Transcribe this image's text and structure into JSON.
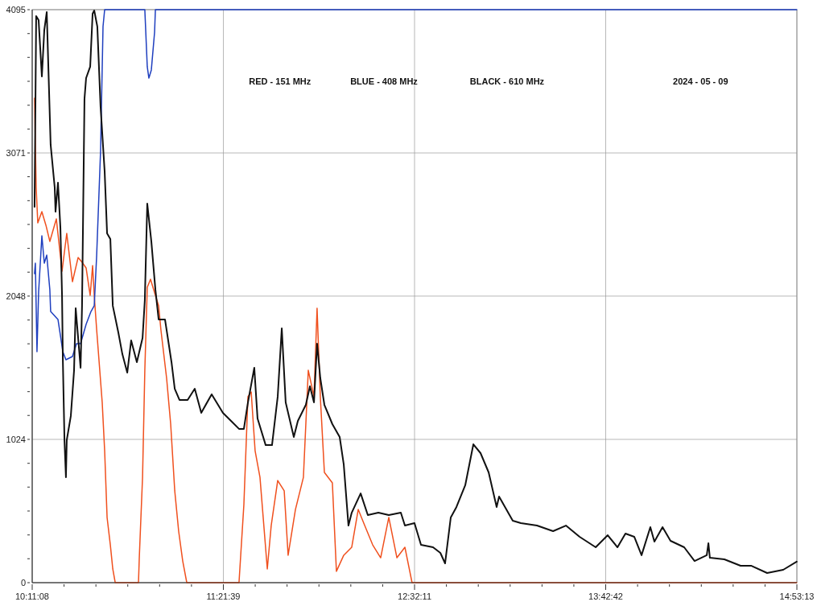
{
  "chart_data": {
    "type": "line",
    "annotations": [
      "RED - 151 MHz",
      "BLUE - 408 MHz",
      "BLACK - 610 MHz",
      "2024 - 05 - 09"
    ],
    "xlim": [
      10.18556,
      14.88694
    ],
    "xticks": [
      {
        "value": 10.18556,
        "label": "10:11:08"
      },
      {
        "value": 10.3814,
        "label": null
      },
      {
        "value": 10.5773,
        "label": null
      },
      {
        "value": 10.7732,
        "label": null
      },
      {
        "value": 10.969,
        "label": null
      },
      {
        "value": 11.1649,
        "label": null
      },
      {
        "value": 11.36083,
        "label": "11:21:39"
      },
      {
        "value": 11.5567,
        "label": null
      },
      {
        "value": 11.7526,
        "label": null
      },
      {
        "value": 11.9485,
        "label": null
      },
      {
        "value": 12.1445,
        "label": null
      },
      {
        "value": 12.3404,
        "label": null
      },
      {
        "value": 12.53639,
        "label": "12:32:11"
      },
      {
        "value": 12.7323,
        "label": null
      },
      {
        "value": 12.9282,
        "label": null
      },
      {
        "value": 13.1241,
        "label": null
      },
      {
        "value": 13.32,
        "label": null
      },
      {
        "value": 13.5158,
        "label": null
      },
      {
        "value": 13.71167,
        "label": "13:42:42"
      },
      {
        "value": 13.9076,
        "label": null
      },
      {
        "value": 14.1035,
        "label": null
      },
      {
        "value": 14.2994,
        "label": null
      },
      {
        "value": 14.4952,
        "label": null
      },
      {
        "value": 14.6911,
        "label": null
      },
      {
        "value": 14.88694,
        "label": "14:53:13"
      }
    ],
    "ylim": [
      0,
      4095
    ],
    "yticks": [
      0,
      {
        "value": 171,
        "label": null
      },
      {
        "value": 341,
        "label": null
      },
      {
        "value": 512,
        "label": null
      },
      {
        "value": 683,
        "label": null
      },
      {
        "value": 853,
        "label": null
      },
      1024,
      {
        "value": 1195,
        "label": null
      },
      {
        "value": 1365,
        "label": null
      },
      {
        "value": 1536,
        "label": null
      },
      {
        "value": 1707,
        "label": null
      },
      {
        "value": 1877,
        "label": null
      },
      2048,
      {
        "value": 2219,
        "label": null
      },
      {
        "value": 2389,
        "label": null
      },
      {
        "value": 2560,
        "label": null
      },
      {
        "value": 2730,
        "label": null
      },
      {
        "value": 2901,
        "label": null
      },
      3071,
      {
        "value": 3242,
        "label": null
      },
      {
        "value": 3412,
        "label": null
      },
      {
        "value": 3583,
        "label": null
      },
      {
        "value": 3754,
        "label": null
      },
      {
        "value": 3924,
        "label": null
      },
      4095
    ],
    "grid": true,
    "series": [
      {
        "color": "#f0501e",
        "x": [
          10.2,
          10.21,
          10.22,
          10.245,
          10.27,
          10.294,
          10.334,
          10.369,
          10.398,
          10.433,
          10.468,
          10.497,
          10.517,
          10.542,
          10.557,
          10.567,
          10.582,
          10.596,
          10.616,
          10.631,
          10.646,
          10.666,
          10.681,
          10.696,
          10.72,
          10.839,
          10.844,
          10.864,
          10.878,
          10.893,
          10.913,
          10.943,
          10.963,
          10.977,
          11.012,
          11.037,
          11.062,
          11.086,
          11.111,
          11.136,
          11.457,
          11.487,
          11.512,
          11.532,
          11.556,
          11.586,
          11.631,
          11.655,
          11.695,
          11.735,
          11.759,
          11.804,
          11.853,
          11.883,
          11.918,
          11.937,
          11.957,
          11.982,
          12.031,
          12.056,
          12.101,
          12.15,
          12.19,
          12.23,
          12.279,
          12.328,
          12.378,
          12.428,
          12.477,
          12.521,
          14.886
        ],
        "values": [
          3462,
          2824,
          2571,
          2651,
          2554,
          2439,
          2600,
          2226,
          2496,
          2151,
          2324,
          2283,
          2249,
          2053,
          2266,
          2053,
          1806,
          1593,
          1288,
          943,
          466,
          270,
          98,
          0,
          0,
          0,
          178,
          753,
          1518,
          2111,
          2168,
          2053,
          1978,
          1806,
          1461,
          1133,
          656,
          368,
          155,
          0,
          0,
          558,
          1329,
          1363,
          943,
          753,
          98,
          408,
          730,
          656,
          196,
          523,
          753,
          1518,
          1329,
          1961,
          1329,
          788,
          713,
          81,
          196,
          253,
          523,
          408,
          270,
          178,
          466,
          178,
          253,
          0,
          0
        ]
      },
      {
        "color": "#1f3fbf",
        "x": [
          10.2,
          10.205,
          10.215,
          10.225,
          10.245,
          10.26,
          10.275,
          10.294,
          10.299,
          10.344,
          10.374,
          10.393,
          10.433,
          10.458,
          10.483,
          10.517,
          10.547,
          10.567,
          10.582,
          10.606,
          10.621,
          10.631,
          10.878,
          10.893,
          10.903,
          10.918,
          10.938,
          10.943,
          14.886
        ],
        "values": [
          2209,
          2283,
          1651,
          2076,
          2479,
          2283,
          2341,
          2094,
          1938,
          1881,
          1651,
          1593,
          1616,
          1708,
          1708,
          1846,
          1938,
          1979,
          2341,
          3089,
          3974,
          4095,
          4095,
          3687,
          3606,
          3664,
          3934,
          4095,
          4095
        ]
      },
      {
        "color": "#111111",
        "x": [
          10.2,
          10.21,
          10.225,
          10.245,
          10.26,
          10.275,
          10.299,
          10.324,
          10.329,
          10.344,
          10.359,
          10.369,
          10.374,
          10.384,
          10.393,
          10.398,
          10.423,
          10.443,
          10.453,
          10.483,
          10.492,
          10.507,
          10.517,
          10.542,
          10.557,
          10.567,
          10.586,
          10.606,
          10.631,
          10.646,
          10.666,
          10.681,
          10.715,
          10.74,
          10.77,
          10.794,
          10.829,
          10.864,
          10.878,
          10.893,
          10.918,
          10.943,
          10.963,
          11.002,
          11.042,
          11.062,
          11.091,
          11.141,
          11.185,
          11.225,
          11.289,
          11.358,
          11.408,
          11.457,
          11.487,
          11.512,
          11.551,
          11.571,
          11.621,
          11.66,
          11.695,
          11.72,
          11.744,
          11.794,
          11.819,
          11.868,
          11.893,
          11.918,
          11.937,
          11.957,
          11.982,
          12.031,
          12.076,
          12.101,
          12.13,
          12.15,
          12.205,
          12.249,
          12.314,
          12.378,
          12.452,
          12.477,
          12.536,
          12.576,
          12.65,
          12.695,
          12.724,
          12.759,
          12.794,
          12.848,
          12.898,
          12.942,
          12.992,
          13.041,
          13.056,
          13.14,
          13.19,
          13.289,
          13.388,
          13.467,
          13.551,
          13.65,
          13.724,
          13.784,
          13.833,
          13.887,
          13.932,
          13.986,
          14.011,
          14.061,
          14.11,
          14.194,
          14.258,
          14.333,
          14.343,
          14.352,
          14.441,
          14.541,
          14.605,
          14.704,
          14.803,
          14.886
        ],
        "values": [
          2686,
          4049,
          4020,
          3618,
          3951,
          4078,
          3129,
          2824,
          2651,
          2858,
          2536,
          2053,
          1593,
          1018,
          753,
          1018,
          1191,
          1518,
          1961,
          1536,
          1979,
          3457,
          3606,
          3687,
          4066,
          4089,
          3974,
          3400,
          2939,
          2496,
          2456,
          1979,
          1789,
          1633,
          1501,
          1731,
          1576,
          1748,
          2019,
          2709,
          2439,
          2094,
          1881,
          1881,
          1576,
          1386,
          1306,
          1306,
          1386,
          1214,
          1346,
          1214,
          1156,
          1099,
          1099,
          1288,
          1536,
          1173,
          983,
          983,
          1329,
          1817,
          1288,
          1041,
          1156,
          1271,
          1403,
          1288,
          1708,
          1461,
          1271,
          1133,
          1041,
          845,
          408,
          500,
          638,
          483,
          500,
          483,
          500,
          408,
          426,
          270,
          253,
          213,
          138,
          466,
          541,
          696,
          989,
          926,
          788,
          541,
          615,
          443,
          426,
          408,
          368,
          408,
          328,
          253,
          339,
          253,
          351,
          328,
          196,
          397,
          293,
          397,
          299,
          253,
          155,
          196,
          282,
          178,
          167,
          121,
          121,
          69,
          92,
          150
        ]
      }
    ]
  }
}
